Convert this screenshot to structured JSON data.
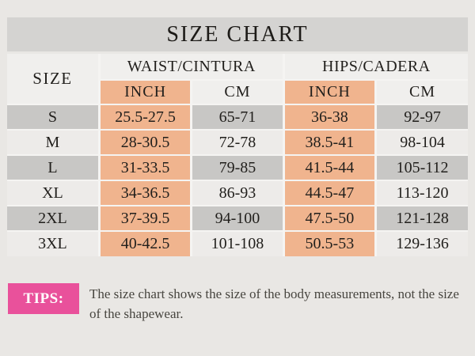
{
  "title": "SIZE CHART",
  "colors": {
    "inch_highlight": "#f0b48e",
    "tips_accent": "#e9519b",
    "row_gray": "#c8c7c5",
    "row_light": "#edebe9",
    "title_bar": "#d4d3d1",
    "header_cell": "#f0efed",
    "page_background": "#e9e7e4"
  },
  "table": {
    "size_header": "SIZE",
    "waist_header": "WAIST/CINTURA",
    "hips_header": "HIPS/CADERA",
    "inch_header": "INCH",
    "cm_header": "CM",
    "rows": [
      {
        "size": "S",
        "waist_inch": "25.5-27.5",
        "waist_cm": "65-71",
        "hips_inch": "36-38",
        "hips_cm": "92-97"
      },
      {
        "size": "M",
        "waist_inch": "28-30.5",
        "waist_cm": "72-78",
        "hips_inch": "38.5-41",
        "hips_cm": "98-104"
      },
      {
        "size": "L",
        "waist_inch": "31-33.5",
        "waist_cm": "79-85",
        "hips_inch": "41.5-44",
        "hips_cm": "105-112"
      },
      {
        "size": "XL",
        "waist_inch": "34-36.5",
        "waist_cm": "86-93",
        "hips_inch": "44.5-47",
        "hips_cm": "113-120"
      },
      {
        "size": "2XL",
        "waist_inch": "37-39.5",
        "waist_cm": "94-100",
        "hips_inch": "47.5-50",
        "hips_cm": "121-128"
      },
      {
        "size": "3XL",
        "waist_inch": "40-42.5",
        "waist_cm": "101-108",
        "hips_inch": "50.5-53",
        "hips_cm": "129-136"
      }
    ]
  },
  "tips": {
    "label": "TIPS:",
    "text": "The size chart shows the size of the body measurements, not the size of the shapewear."
  }
}
